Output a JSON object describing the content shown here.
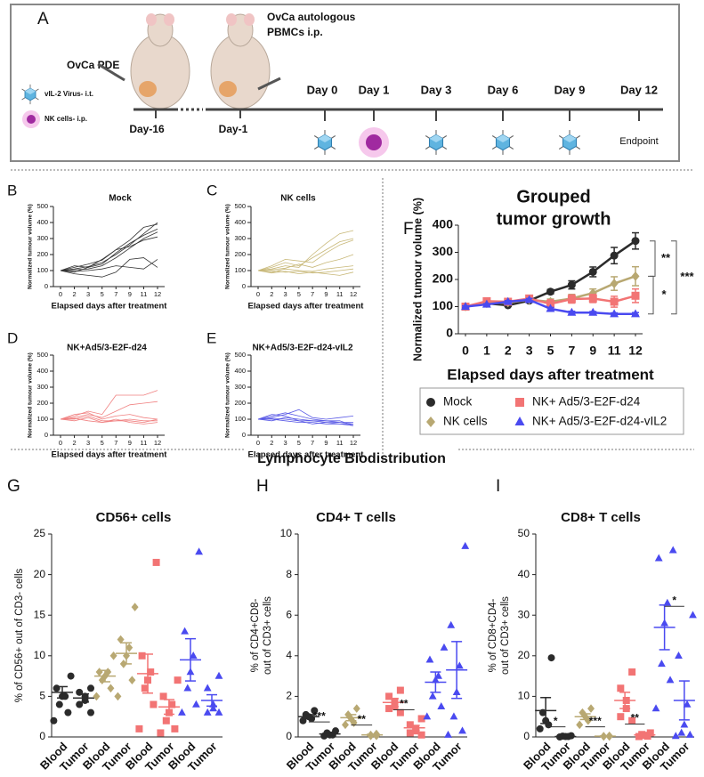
{
  "diagram": {
    "panel": "A",
    "pde": "OvCa PDE",
    "pbmc_lines": [
      "OvCa autologous",
      "PBMCs i.p."
    ],
    "legend": [
      "vIL-2 Virus- i.t.",
      "NK cells- i.p."
    ],
    "days": [
      "Day-16",
      "Day-1",
      "Day 0",
      "Day 1",
      "Day 3",
      "Day 6",
      "Day 9",
      "Day 12"
    ],
    "endpoint": "Endpoint"
  },
  "section_title": "Lymphocyte Biodistribution",
  "chart_data": [
    {
      "type": "line",
      "panel": "B",
      "title": "Mock",
      "xlabel": "Elapsed days after treatment",
      "ylabel": "Normalized tumour volume (%)",
      "categories": [
        "0",
        "2",
        "3",
        "5",
        "7",
        "9",
        "11",
        "12"
      ],
      "ylim": [
        0,
        500
      ],
      "yticks": [
        0,
        100,
        200,
        300,
        400,
        500
      ],
      "series": [
        {
          "color": "#333333",
          "values": [
            100,
            110,
            125,
            150,
            200,
            260,
            330,
            400
          ]
        },
        {
          "color": "#333333",
          "values": [
            100,
            120,
            140,
            165,
            230,
            290,
            370,
            390
          ]
        },
        {
          "color": "#333333",
          "values": [
            100,
            90,
            120,
            140,
            210,
            270,
            320,
            360
          ]
        },
        {
          "color": "#333333",
          "values": [
            100,
            105,
            110,
            130,
            180,
            240,
            300,
            340
          ]
        },
        {
          "color": "#333333",
          "values": [
            100,
            130,
            120,
            170,
            230,
            250,
            290,
            310
          ]
        },
        {
          "color": "#333333",
          "values": [
            100,
            95,
            100,
            110,
            130,
            120,
            110,
            170
          ]
        },
        {
          "color": "#333333",
          "values": [
            100,
            80,
            70,
            60,
            90,
            170,
            180,
            120
          ]
        }
      ]
    },
    {
      "type": "line",
      "panel": "C",
      "title": "NK cells",
      "xlabel": "Elapsed days after treatment",
      "ylabel": "Normalized tumour volume (%)",
      "categories": [
        "0",
        "2",
        "3",
        "5",
        "7",
        "9",
        "11",
        "12"
      ],
      "ylim": [
        0,
        500
      ],
      "yticks": [
        0,
        100,
        200,
        300,
        400,
        500
      ],
      "series": [
        {
          "color": "#c8b878",
          "values": [
            100,
            110,
            130,
            120,
            200,
            270,
            330,
            350
          ]
        },
        {
          "color": "#c8b878",
          "values": [
            100,
            120,
            150,
            130,
            180,
            230,
            280,
            300
          ]
        },
        {
          "color": "#c8b878",
          "values": [
            100,
            130,
            170,
            160,
            150,
            210,
            260,
            290
          ]
        },
        {
          "color": "#c8b878",
          "values": [
            100,
            105,
            115,
            140,
            120,
            150,
            170,
            200
          ]
        },
        {
          "color": "#c8b878",
          "values": [
            100,
            90,
            110,
            100,
            95,
            110,
            120,
            130
          ]
        },
        {
          "color": "#c8b878",
          "values": [
            100,
            100,
            90,
            95,
            85,
            90,
            100,
            110
          ]
        },
        {
          "color": "#c8b878",
          "values": [
            100,
            85,
            95,
            80,
            90,
            80,
            70,
            90
          ]
        }
      ]
    },
    {
      "type": "line",
      "panel": "D",
      "title": "NK+Ad5/3-E2F-d24",
      "xlabel": "Elapsed days after treatment",
      "ylabel": "Normalized tumour volume (%)",
      "categories": [
        "0",
        "2",
        "3",
        "5",
        "7",
        "9",
        "11",
        "12"
      ],
      "ylim": [
        0,
        500
      ],
      "yticks": [
        0,
        100,
        200,
        300,
        400,
        500
      ],
      "series": [
        {
          "color": "#f08080",
          "values": [
            100,
            120,
            150,
            130,
            250,
            250,
            250,
            280
          ]
        },
        {
          "color": "#f08080",
          "values": [
            100,
            110,
            130,
            110,
            150,
            190,
            200,
            210
          ]
        },
        {
          "color": "#f08080",
          "values": [
            100,
            130,
            140,
            100,
            120,
            130,
            110,
            100
          ]
        },
        {
          "color": "#f08080",
          "values": [
            100,
            100,
            120,
            90,
            90,
            100,
            90,
            90
          ]
        },
        {
          "color": "#f08080",
          "values": [
            100,
            90,
            110,
            80,
            100,
            80,
            70,
            80
          ]
        },
        {
          "color": "#f08080",
          "values": [
            100,
            105,
            90,
            80,
            90,
            90,
            80,
            100
          ]
        }
      ]
    },
    {
      "type": "line",
      "panel": "E",
      "title": "NK+Ad5/3-E2F-d24-vIL2",
      "xlabel": "Elapsed days after treatment",
      "ylabel": "Normalized tumour volume (%)",
      "categories": [
        "0",
        "2",
        "3",
        "5",
        "7",
        "9",
        "11",
        "12"
      ],
      "ylim": [
        0,
        500
      ],
      "yticks": [
        0,
        100,
        200,
        300,
        400,
        500
      ],
      "series": [
        {
          "color": "#5a5ae6",
          "values": [
            100,
            110,
            130,
            160,
            110,
            100,
            110,
            120
          ]
        },
        {
          "color": "#5a5ae6",
          "values": [
            100,
            120,
            140,
            120,
            100,
            90,
            90,
            60
          ]
        },
        {
          "color": "#5a5ae6",
          "values": [
            100,
            90,
            110,
            100,
            90,
            80,
            80,
            70
          ]
        },
        {
          "color": "#5a5ae6",
          "values": [
            100,
            100,
            90,
            80,
            80,
            70,
            70,
            60
          ]
        },
        {
          "color": "#5a5ae6",
          "values": [
            100,
            130,
            120,
            90,
            70,
            80,
            70,
            70
          ]
        },
        {
          "color": "#5a5ae6",
          "values": [
            100,
            105,
            100,
            90,
            90,
            90,
            80,
            80
          ]
        }
      ]
    },
    {
      "type": "line",
      "panel": "F",
      "title_lines": [
        "Grouped",
        "tumor growth"
      ],
      "xlabel": "Elapsed days after treatment",
      "ylabel": "Normalized tumour volume (%)",
      "categories": [
        "0",
        "1",
        "2",
        "3",
        "5",
        "7",
        "9",
        "11",
        "12"
      ],
      "ylim": [
        0,
        400
      ],
      "yticks": [
        0,
        100,
        200,
        300,
        400
      ],
      "series": [
        {
          "name": "Mock",
          "color": "#2b2b2b",
          "marker": "circle",
          "values": [
            100,
            112,
            105,
            122,
            155,
            180,
            228,
            288,
            342
          ],
          "errors": [
            3,
            3,
            4,
            5,
            8,
            15,
            18,
            30,
            30
          ]
        },
        {
          "name": "NK cells",
          "color": "#b8a872",
          "marker": "diamond",
          "values": [
            100,
            112,
            115,
            125,
            118,
            130,
            150,
            185,
            212
          ],
          "errors": [
            3,
            3,
            5,
            6,
            10,
            15,
            15,
            25,
            35
          ]
        },
        {
          "name": "NK+ Ad5/3-E2F-d24",
          "color": "#f27474",
          "marker": "square",
          "values": [
            100,
            120,
            118,
            130,
            110,
            128,
            130,
            118,
            140
          ],
          "errors": [
            4,
            5,
            8,
            10,
            15,
            15,
            15,
            20,
            25
          ]
        },
        {
          "name": "NK+ Ad5/3-E2F-d24-vIL2",
          "color": "#4a4af0",
          "marker": "triangle",
          "values": [
            100,
            108,
            118,
            125,
            92,
            78,
            78,
            73,
            73
          ],
          "errors": [
            3,
            3,
            4,
            5,
            5,
            5,
            4,
            4,
            5
          ]
        }
      ],
      "annotations": [
        "**",
        "*",
        "***"
      ]
    },
    {
      "type": "dot",
      "panel": "G",
      "title": "CD56+ cells",
      "ylabel_lines": [
        "% of CD56+ out of CD3- cells"
      ],
      "categories": [
        "Blood",
        "Tumor",
        "Blood",
        "Tumor",
        "Blood",
        "Tumor",
        "Blood",
        "Tumor"
      ],
      "ylim": [
        0,
        25
      ],
      "yticks": [
        0,
        5,
        10,
        15,
        20,
        25
      ],
      "groups": [
        {
          "color": "#2b2b2b",
          "marker": "circle",
          "points": [
            7.5,
            6,
            5,
            5,
            4,
            3,
            2
          ],
          "mean": 5.5,
          "sem": 0.7
        },
        {
          "color": "#2b2b2b",
          "marker": "circle",
          "points": [
            6,
            5.5,
            5,
            4.5,
            4,
            3
          ],
          "mean": 4.8,
          "sem": 0.5
        },
        {
          "color": "#b8a872",
          "marker": "diamond",
          "points": [
            10,
            8,
            8,
            7.5,
            7,
            6,
            5
          ],
          "mean": 7.5,
          "sem": 0.7
        },
        {
          "color": "#b8a872",
          "marker": "diamond",
          "points": [
            16,
            12,
            11,
            10,
            9,
            7,
            5
          ],
          "mean": 10.3,
          "sem": 1.3
        },
        {
          "color": "#f27474",
          "marker": "square",
          "points": [
            21.5,
            10,
            8,
            7,
            6,
            4,
            1
          ],
          "mean": 7.8,
          "sem": 2.4
        },
        {
          "color": "#f27474",
          "marker": "square",
          "points": [
            7,
            5,
            4,
            3,
            2,
            1,
            0.5
          ],
          "mean": 3.7,
          "sem": 0.9
        },
        {
          "color": "#4a4af0",
          "marker": "triangle",
          "points": [
            22.8,
            13,
            10,
            8,
            6,
            4,
            3
          ],
          "mean": 9.5,
          "sem": 2.6
        },
        {
          "color": "#4a4af0",
          "marker": "triangle",
          "points": [
            7.5,
            6,
            4,
            3.5,
            3,
            3
          ],
          "mean": 4.5,
          "sem": 0.7
        }
      ]
    },
    {
      "type": "dot",
      "panel": "H",
      "title": "CD4+ T cells",
      "ylabel_lines": [
        "% of CD4+CD8-",
        "out of CD3+ cells"
      ],
      "categories": [
        "Blood",
        "Tumor",
        "Blood",
        "Tumor",
        "Blood",
        "Tumor",
        "Blood",
        "Tumor"
      ],
      "ylim": [
        0,
        10
      ],
      "yticks": [
        0,
        2,
        4,
        6,
        8,
        10
      ],
      "groups": [
        {
          "color": "#2b2b2b",
          "marker": "circle",
          "points": [
            1.3,
            1.1,
            1.0,
            0.9,
            0.8
          ],
          "mean": 1.0,
          "sem": 0.1
        },
        {
          "color": "#2b2b2b",
          "marker": "circle",
          "points": [
            0.3,
            0.2,
            0.1,
            0.1,
            0.05
          ],
          "mean": 0.15,
          "sem": 0.05
        },
        {
          "color": "#b8a872",
          "marker": "diamond",
          "points": [
            1.4,
            1.1,
            0.9,
            0.7,
            0.6
          ],
          "mean": 0.95,
          "sem": 0.15
        },
        {
          "color": "#b8a872",
          "marker": "diamond",
          "points": [
            0.15,
            0.1,
            0.05,
            0.05
          ],
          "mean": 0.1,
          "sem": 0.03
        },
        {
          "color": "#f27474",
          "marker": "square",
          "points": [
            2.3,
            2.0,
            1.7,
            1.5,
            1.4,
            1.2
          ],
          "mean": 1.7,
          "sem": 0.2
        },
        {
          "color": "#f27474",
          "marker": "square",
          "points": [
            0.9,
            0.6,
            0.4,
            0.3,
            0.2,
            0.1
          ],
          "mean": 0.45,
          "sem": 0.12
        },
        {
          "color": "#4a4af0",
          "marker": "triangle",
          "points": [
            4.4,
            3.8,
            3.0,
            2.8,
            2.0,
            1.5,
            1.0
          ],
          "mean": 2.7,
          "sem": 0.5
        },
        {
          "color": "#4a4af0",
          "marker": "triangle",
          "points": [
            9.4,
            5.5,
            3.5,
            2.2,
            1.0,
            0.3,
            0.1
          ],
          "mean": 3.3,
          "sem": 1.4
        }
      ],
      "annotations": [
        "***",
        "**",
        "**"
      ]
    },
    {
      "type": "dot",
      "panel": "I",
      "title": "CD8+ T cells",
      "ylabel_lines": [
        "% of CD8+CD4-",
        "out of CD3+ cells"
      ],
      "categories": [
        "Blood",
        "Tumor",
        "Blood",
        "Tumor",
        "Blood",
        "Tumor",
        "Blood",
        "Tumor"
      ],
      "ylim": [
        0,
        50
      ],
      "yticks": [
        0,
        10,
        20,
        30,
        40,
        50
      ],
      "groups": [
        {
          "color": "#2b2b2b",
          "marker": "circle",
          "points": [
            19.5,
            6,
            4,
            3,
            2
          ],
          "mean": 6.5,
          "sem": 3.2
        },
        {
          "color": "#2b2b2b",
          "marker": "circle",
          "points": [
            0.3,
            0.2,
            0.1,
            0.1,
            0
          ],
          "mean": 0.1,
          "sem": 0.05
        },
        {
          "color": "#b8a872",
          "marker": "diamond",
          "points": [
            7,
            6,
            5,
            4,
            3
          ],
          "mean": 5,
          "sem": 0.7
        },
        {
          "color": "#b8a872",
          "marker": "diamond",
          "points": [
            0.3,
            0.2,
            0.1,
            0.1
          ],
          "mean": 0.2,
          "sem": 0.05
        },
        {
          "color": "#f27474",
          "marker": "square",
          "points": [
            16,
            12,
            9,
            7,
            5,
            4
          ],
          "mean": 9,
          "sem": 2
        },
        {
          "color": "#f27474",
          "marker": "square",
          "points": [
            1,
            0.6,
            0.4,
            0.2,
            0.1
          ],
          "mean": 0.5,
          "sem": 0.15
        },
        {
          "color": "#4a4af0",
          "marker": "triangle",
          "points": [
            46,
            44,
            33,
            28,
            18,
            14,
            7
          ],
          "mean": 27,
          "sem": 5.5
        },
        {
          "color": "#4a4af0",
          "marker": "triangle",
          "points": [
            30,
            20,
            8,
            3,
            1,
            0.5,
            0.2
          ],
          "mean": 9,
          "sem": 4.8
        }
      ],
      "annotations": [
        "*",
        "***",
        "**",
        "*"
      ]
    }
  ]
}
